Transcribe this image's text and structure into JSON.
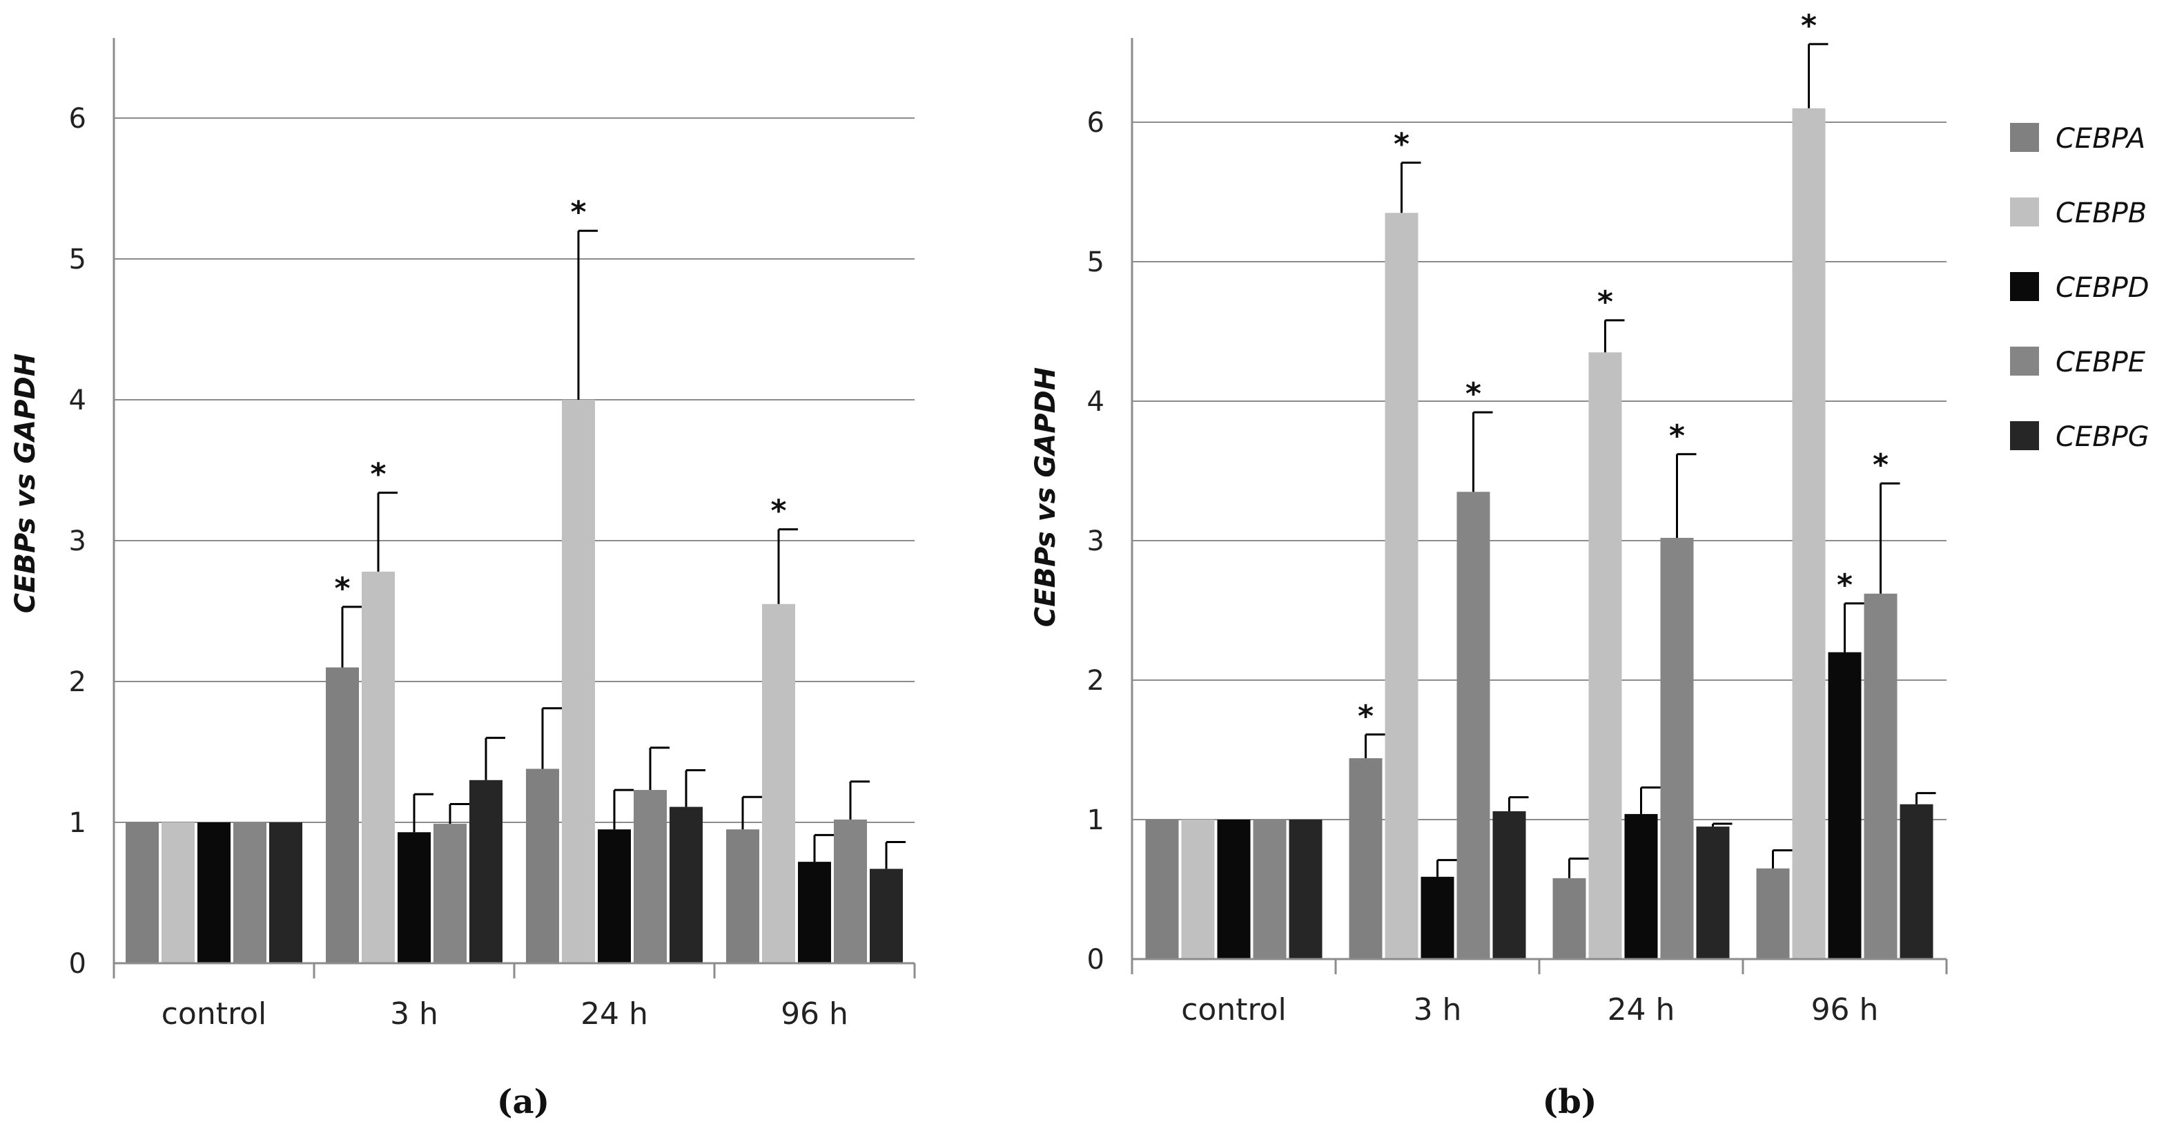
{
  "chart_data": [
    {
      "panel": "(a)",
      "type": "bar",
      "ylabel": "CEBPs vs GAPDH",
      "ylim": [
        0,
        6.5
      ],
      "yticks": [
        0,
        1,
        2,
        3,
        4,
        5,
        6
      ],
      "categories": [
        "control",
        "3 h",
        "24 h",
        "96 h"
      ],
      "series": [
        {
          "name": "CEBPA",
          "values": [
            1.0,
            2.1,
            1.38,
            0.95
          ],
          "errors": [
            0,
            0.43,
            0.43,
            0.23
          ],
          "sig": [
            false,
            true,
            false,
            false
          ]
        },
        {
          "name": "CEBPB",
          "values": [
            1.0,
            2.78,
            4.0,
            2.55
          ],
          "errors": [
            0,
            0.56,
            1.2,
            0.53
          ],
          "sig": [
            false,
            true,
            true,
            true
          ]
        },
        {
          "name": "CEBPD",
          "values": [
            1.0,
            0.93,
            0.95,
            0.72
          ],
          "errors": [
            0,
            0.27,
            0.28,
            0.19
          ],
          "sig": [
            false,
            false,
            false,
            false
          ]
        },
        {
          "name": "CEBPE",
          "values": [
            1.0,
            0.99,
            1.23,
            1.02
          ],
          "errors": [
            0,
            0.14,
            0.3,
            0.27
          ],
          "sig": [
            false,
            false,
            false,
            false
          ]
        },
        {
          "name": "CEBPG",
          "values": [
            1.0,
            1.3,
            1.11,
            0.67
          ],
          "errors": [
            0,
            0.3,
            0.26,
            0.19
          ],
          "sig": [
            false,
            false,
            false,
            false
          ]
        }
      ]
    },
    {
      "panel": "(b)",
      "type": "bar",
      "ylabel": "CEBPs vs GAPDH",
      "ylim": [
        0,
        6.6
      ],
      "yticks": [
        0,
        1,
        2,
        3,
        4,
        5,
        6
      ],
      "categories": [
        "control",
        "3 h",
        "24 h",
        "96 h"
      ],
      "series": [
        {
          "name": "CEBPA",
          "values": [
            1.0,
            1.44,
            0.58,
            0.65
          ],
          "errors": [
            0,
            0.17,
            0.14,
            0.13
          ],
          "sig": [
            false,
            true,
            false,
            false
          ]
        },
        {
          "name": "CEBPB",
          "values": [
            1.0,
            5.35,
            4.35,
            6.1
          ],
          "errors": [
            0,
            0.36,
            0.23,
            0.46
          ],
          "sig": [
            false,
            true,
            true,
            true
          ]
        },
        {
          "name": "CEBPD",
          "values": [
            1.0,
            0.59,
            1.04,
            2.2
          ],
          "errors": [
            0,
            0.12,
            0.19,
            0.35
          ],
          "sig": [
            false,
            false,
            false,
            true
          ]
        },
        {
          "name": "CEBPE",
          "values": [
            1.0,
            3.35,
            3.02,
            2.62
          ],
          "errors": [
            0,
            0.57,
            0.6,
            0.79
          ],
          "sig": [
            false,
            true,
            true,
            true
          ]
        },
        {
          "name": "CEBPG",
          "values": [
            1.0,
            1.06,
            0.95,
            1.11
          ],
          "errors": [
            0,
            0.1,
            0.02,
            0.08
          ],
          "sig": [
            false,
            false,
            false,
            false
          ]
        }
      ]
    }
  ],
  "legend": {
    "entries": [
      "CEBPA",
      "CEBPB",
      "CEBPD",
      "CEBPE",
      "CEBPG"
    ]
  },
  "significance_marker": "*",
  "colors": {
    "CEBPA": "#808080",
    "CEBPB": "#c0c0c0",
    "CEBPD": "#0a0a0a",
    "CEBPE": "#858585",
    "CEBPG": "#262626",
    "grid": "#8c8c8c",
    "axis": "#8c8c8c",
    "error": "#000000"
  }
}
